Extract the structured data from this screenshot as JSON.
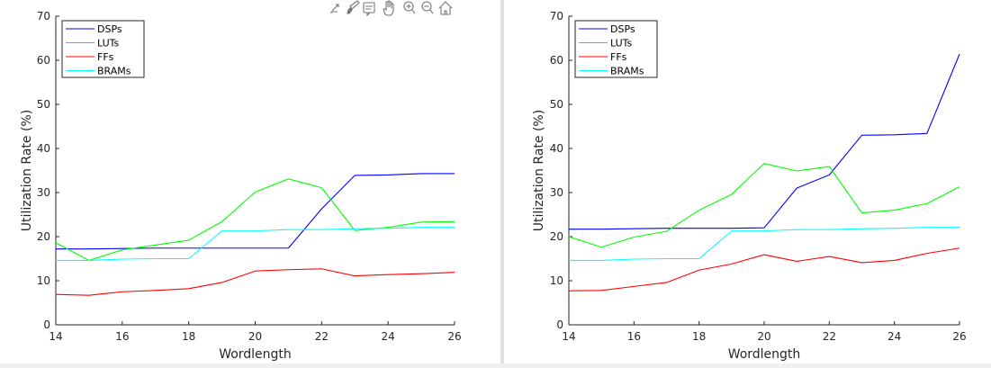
{
  "toolbar": {
    "icons": [
      "export-icon",
      "brush-icon",
      "data-tips-icon",
      "pan-icon",
      "zoom-in-icon",
      "zoom-out-icon",
      "home-icon"
    ]
  },
  "chart_data": [
    {
      "type": "line",
      "title": "",
      "xlabel": "Wordlength",
      "ylabel": "Utilization Rate (%)",
      "xlim": [
        14,
        26
      ],
      "ylim": [
        0,
        70
      ],
      "xticks": [
        14,
        16,
        18,
        20,
        22,
        24,
        26
      ],
      "yticks": [
        0,
        10,
        20,
        30,
        40,
        50,
        60,
        70
      ],
      "grid": false,
      "legend": "top-left",
      "x": [
        14,
        15,
        16,
        17,
        18,
        19,
        20,
        21,
        22,
        23,
        24,
        25,
        26
      ],
      "series": [
        {
          "name": "DSPs",
          "color": "#0000ff",
          "values": [
            17.2,
            17.2,
            17.3,
            17.4,
            17.4,
            17.4,
            17.4,
            17.4,
            26.3,
            33.9,
            34.0,
            34.3,
            34.3
          ]
        },
        {
          "name": "LUTs",
          "color": "#00ff00",
          "values": [
            18.6,
            14.6,
            17.0,
            18.1,
            19.2,
            23.4,
            30.1,
            33.1,
            31.1,
            21.4,
            22.1,
            23.3,
            23.4
          ]
        },
        {
          "name": "FFs",
          "color": "#ff0000",
          "values": [
            6.9,
            6.7,
            7.5,
            7.8,
            8.2,
            9.6,
            12.2,
            12.5,
            12.7,
            11.1,
            11.4,
            11.6,
            11.9
          ]
        },
        {
          "name": "BRAMs",
          "color": "#00ffff",
          "values": [
            14.6,
            14.6,
            14.9,
            15.0,
            15.0,
            21.3,
            21.3,
            21.6,
            21.6,
            21.8,
            21.9,
            22.1,
            22.1
          ]
        }
      ]
    },
    {
      "type": "line",
      "title": "",
      "xlabel": "Wordlength",
      "ylabel": "Utilization Rate (%)",
      "xlim": [
        14,
        26
      ],
      "ylim": [
        0,
        70
      ],
      "xticks": [
        14,
        16,
        18,
        20,
        22,
        24,
        26
      ],
      "yticks": [
        0,
        10,
        20,
        30,
        40,
        50,
        60,
        70
      ],
      "grid": false,
      "legend": "top-left",
      "x": [
        14,
        15,
        16,
        17,
        18,
        19,
        20,
        21,
        22,
        23,
        24,
        25,
        26
      ],
      "series": [
        {
          "name": "DSPs",
          "color": "#0000ff",
          "values": [
            21.7,
            21.7,
            21.8,
            21.9,
            21.9,
            21.9,
            22.0,
            31.0,
            34.0,
            43.0,
            43.1,
            43.4,
            61.4
          ]
        },
        {
          "name": "LUTs",
          "color": "#00ff00",
          "values": [
            20.0,
            17.6,
            19.9,
            21.2,
            26.0,
            29.6,
            36.6,
            34.9,
            35.9,
            25.4,
            26.0,
            27.5,
            31.3
          ]
        },
        {
          "name": "FFs",
          "color": "#ff0000",
          "values": [
            7.7,
            7.8,
            8.7,
            9.6,
            12.4,
            13.8,
            15.9,
            14.4,
            15.5,
            14.1,
            14.6,
            16.2,
            17.4
          ]
        },
        {
          "name": "BRAMs",
          "color": "#00ffff",
          "values": [
            14.6,
            14.6,
            14.9,
            15.0,
            15.0,
            21.3,
            21.3,
            21.6,
            21.6,
            21.8,
            21.9,
            22.1,
            22.1
          ]
        }
      ]
    }
  ]
}
